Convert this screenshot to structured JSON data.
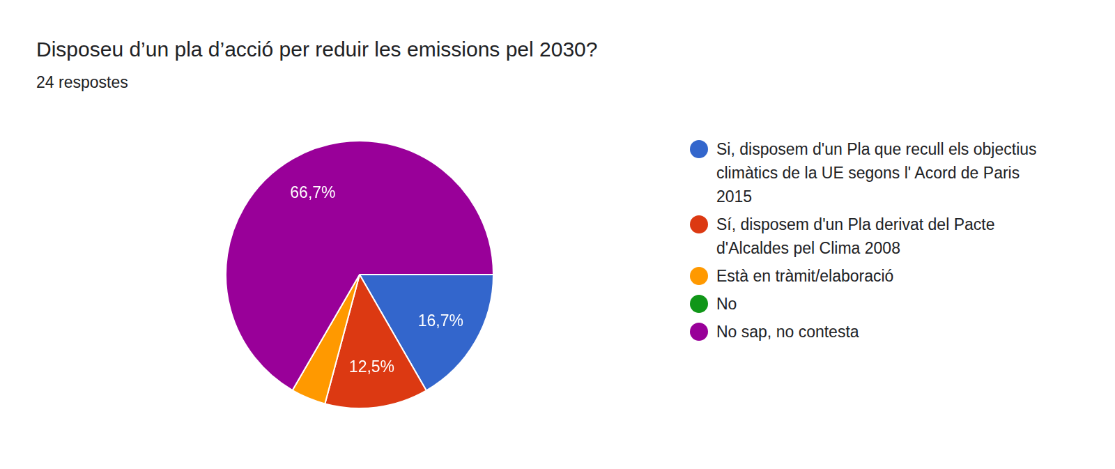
{
  "chart_data": {
    "type": "pie",
    "title": "Disposeu d’un pla d’acció per reduir les emissions pel 2030?",
    "subtitle": "24 respostes",
    "categories": [
      "Si, disposem d'un Pla que recull els objectius climàtics de la UE segons l' Acord de Paris 2015",
      "Sí, disposem d'un Pla derivat del Pacte d'Alcaldes pel Clima 2008",
      "Està en tràmit/elaboració",
      "No",
      "No sap, no contesta"
    ],
    "values": [
      16.7,
      12.5,
      4.2,
      0,
      66.7
    ],
    "value_labels": [
      "16,7%",
      "12,5%",
      null,
      null,
      "66,7%"
    ],
    "colors": [
      "#3366cc",
      "#dc3912",
      "#ff9900",
      "#109618",
      "#990099"
    ],
    "data_labels": true,
    "legend": "right"
  }
}
